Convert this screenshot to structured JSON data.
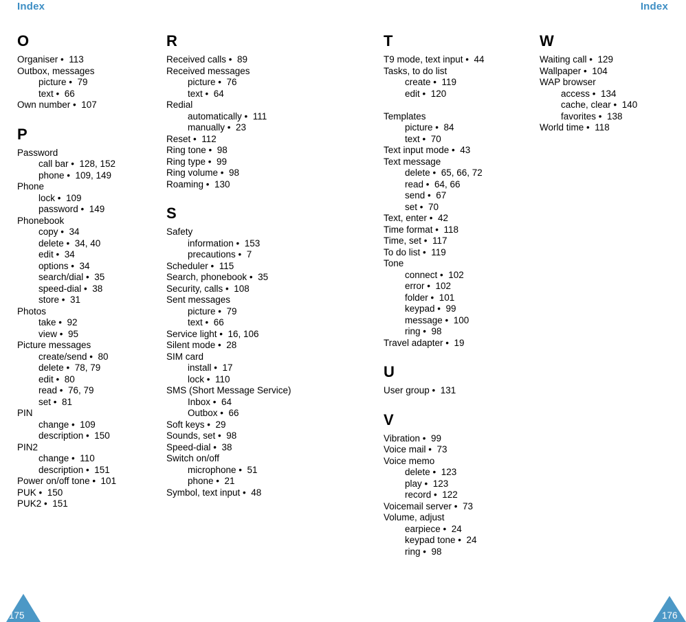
{
  "header_left": "Index",
  "header_right": "Index",
  "footer": {
    "left_page_number": "175",
    "right_page_number": "176"
  },
  "colors": {
    "header_blue": "#3d8ec4",
    "triangle_blue": "#4c98c6",
    "body_text": "#000000",
    "background": "#ffffff"
  },
  "columns": [
    {
      "name": "index-column-1",
      "items": [
        {
          "type": "letter",
          "text": "O"
        },
        {
          "type": "entry",
          "text": "Organiser •  113"
        },
        {
          "type": "entry",
          "text": "Outbox, messages"
        },
        {
          "type": "sub",
          "text": "picture •  79"
        },
        {
          "type": "sub",
          "text": "text •  66"
        },
        {
          "type": "entry",
          "text": "Own number •  107"
        },
        {
          "type": "letter",
          "text": "P"
        },
        {
          "type": "entry",
          "text": "Password"
        },
        {
          "type": "sub",
          "text": "call bar •  128, 152"
        },
        {
          "type": "sub",
          "text": "phone •  109, 149"
        },
        {
          "type": "entry",
          "text": "Phone"
        },
        {
          "type": "sub",
          "text": "lock •  109"
        },
        {
          "type": "sub",
          "text": "password •  149"
        },
        {
          "type": "entry",
          "text": "Phonebook"
        },
        {
          "type": "sub",
          "text": "copy •  34"
        },
        {
          "type": "sub",
          "text": "delete •  34, 40"
        },
        {
          "type": "sub",
          "text": "edit •  34"
        },
        {
          "type": "sub",
          "text": "options •  34"
        },
        {
          "type": "sub",
          "text": "search/dial •  35"
        },
        {
          "type": "sub",
          "text": "speed-dial •  38"
        },
        {
          "type": "sub",
          "text": "store •  31"
        },
        {
          "type": "entry",
          "text": "Photos"
        },
        {
          "type": "sub",
          "text": "take •  92"
        },
        {
          "type": "sub",
          "text": "view •  95"
        },
        {
          "type": "entry",
          "text": "Picture messages"
        },
        {
          "type": "sub",
          "text": "create/send •  80"
        },
        {
          "type": "sub",
          "text": "delete •  78, 79"
        },
        {
          "type": "sub",
          "text": "edit •  80"
        },
        {
          "type": "sub",
          "text": "read •  76, 79"
        },
        {
          "type": "sub",
          "text": "set •  81"
        },
        {
          "type": "entry",
          "text": "PIN"
        },
        {
          "type": "sub",
          "text": "change •  109"
        },
        {
          "type": "sub",
          "text": "description •  150"
        },
        {
          "type": "entry",
          "text": "PIN2"
        },
        {
          "type": "sub",
          "text": "change •  110"
        },
        {
          "type": "sub",
          "text": "description •  151"
        },
        {
          "type": "entry",
          "text": "Power on/off tone •  101"
        },
        {
          "type": "entry",
          "text": "PUK •  150"
        },
        {
          "type": "entry",
          "text": "PUK2 •  151"
        }
      ]
    },
    {
      "name": "index-column-2",
      "items": [
        {
          "type": "letter",
          "text": "R"
        },
        {
          "type": "entry",
          "text": "Received calls •  89"
        },
        {
          "type": "entry",
          "text": "Received messages"
        },
        {
          "type": "sub",
          "text": "picture •  76"
        },
        {
          "type": "sub",
          "text": "text •  64"
        },
        {
          "type": "entry",
          "text": "Redial"
        },
        {
          "type": "sub",
          "text": "automatically •  111"
        },
        {
          "type": "sub",
          "text": "manually •  23"
        },
        {
          "type": "entry",
          "text": "Reset •  112"
        },
        {
          "type": "entry",
          "text": "Ring tone •  98"
        },
        {
          "type": "entry",
          "text": "Ring type •  99"
        },
        {
          "type": "entry",
          "text": "Ring volume •  98"
        },
        {
          "type": "entry",
          "text": "Roaming •  130"
        },
        {
          "type": "letter",
          "text": "S"
        },
        {
          "type": "entry",
          "text": "Safety"
        },
        {
          "type": "sub",
          "text": "information •  153"
        },
        {
          "type": "sub",
          "text": "precautions •  7"
        },
        {
          "type": "entry",
          "text": "Scheduler •  115"
        },
        {
          "type": "entry",
          "text": "Search, phonebook •  35"
        },
        {
          "type": "entry",
          "text": "Security, calls •  108"
        },
        {
          "type": "entry",
          "text": "Sent messages"
        },
        {
          "type": "sub",
          "text": "picture •  79"
        },
        {
          "type": "sub",
          "text": "text •  66"
        },
        {
          "type": "entry",
          "text": "Service light •  16, 106"
        },
        {
          "type": "entry",
          "text": "Silent mode •  28"
        },
        {
          "type": "entry",
          "text": "SIM card"
        },
        {
          "type": "sub",
          "text": "install •  17"
        },
        {
          "type": "sub",
          "text": "lock •  110"
        },
        {
          "type": "entry",
          "text": "SMS (Short Message Service)"
        },
        {
          "type": "sub",
          "text": "Inbox •  64"
        },
        {
          "type": "sub",
          "text": "Outbox •  66"
        },
        {
          "type": "entry",
          "text": "Soft keys •  29"
        },
        {
          "type": "entry",
          "text": "Sounds, set •  98"
        },
        {
          "type": "entry",
          "text": "Speed-dial •  38"
        },
        {
          "type": "entry",
          "text": "Switch on/off"
        },
        {
          "type": "sub",
          "text": "microphone •  51"
        },
        {
          "type": "sub",
          "text": "phone •  21"
        },
        {
          "type": "entry",
          "text": "Symbol, text input •  48"
        }
      ]
    },
    {
      "name": "index-column-3",
      "items": [
        {
          "type": "letter",
          "text": "T"
        },
        {
          "type": "entry",
          "text": "T9 mode, text input •  44"
        },
        {
          "type": "entry",
          "text": "Tasks, to do list"
        },
        {
          "type": "sub",
          "text": "create •  119"
        },
        {
          "type": "sub",
          "text": "edit •  120"
        },
        {
          "type": "gap",
          "text": ""
        },
        {
          "type": "entry",
          "text": "Templates"
        },
        {
          "type": "sub",
          "text": "picture •  84"
        },
        {
          "type": "sub",
          "text": "text •  70"
        },
        {
          "type": "entry",
          "text": "Text input mode •  43"
        },
        {
          "type": "entry",
          "text": "Text message"
        },
        {
          "type": "sub",
          "text": "delete •  65, 66, 72"
        },
        {
          "type": "sub",
          "text": "read •  64, 66"
        },
        {
          "type": "sub",
          "text": "send •  67"
        },
        {
          "type": "sub",
          "text": "set •  70"
        },
        {
          "type": "entry",
          "text": "Text, enter •  42"
        },
        {
          "type": "entry",
          "text": "Time format •  118"
        },
        {
          "type": "entry",
          "text": "Time, set •  117"
        },
        {
          "type": "entry",
          "text": "To do list •  119"
        },
        {
          "type": "entry",
          "text": "Tone"
        },
        {
          "type": "sub",
          "text": "connect •  102"
        },
        {
          "type": "sub",
          "text": "error •  102"
        },
        {
          "type": "sub",
          "text": "folder •  101"
        },
        {
          "type": "sub",
          "text": "keypad •  99"
        },
        {
          "type": "sub",
          "text": "message •  100"
        },
        {
          "type": "sub",
          "text": "ring •  98"
        },
        {
          "type": "entry",
          "text": "Travel adapter •  19"
        },
        {
          "type": "letter",
          "text": "U"
        },
        {
          "type": "entry",
          "text": "User group •  131"
        },
        {
          "type": "letter",
          "text": "V"
        },
        {
          "type": "entry",
          "text": "Vibration •  99"
        },
        {
          "type": "entry",
          "text": "Voice mail •  73"
        },
        {
          "type": "entry",
          "text": "Voice memo"
        },
        {
          "type": "sub",
          "text": "delete •  123"
        },
        {
          "type": "sub",
          "text": "play •  123"
        },
        {
          "type": "sub",
          "text": "record •  122"
        },
        {
          "type": "entry",
          "text": "Voicemail server •  73"
        },
        {
          "type": "entry",
          "text": "Volume, adjust"
        },
        {
          "type": "sub",
          "text": "earpiece •  24"
        },
        {
          "type": "sub",
          "text": "keypad tone •  24"
        },
        {
          "type": "sub",
          "text": "ring •  98"
        }
      ]
    },
    {
      "name": "index-column-4",
      "items": [
        {
          "type": "letter",
          "text": "W"
        },
        {
          "type": "entry",
          "text": "Waiting call •  129"
        },
        {
          "type": "entry",
          "text": "Wallpaper •  104"
        },
        {
          "type": "entry",
          "text": "WAP browser"
        },
        {
          "type": "sub",
          "text": "access •  134"
        },
        {
          "type": "sub",
          "text": "cache, clear •  140"
        },
        {
          "type": "sub",
          "text": "favorites •  138"
        },
        {
          "type": "entry",
          "text": "World time •  118"
        }
      ]
    }
  ]
}
